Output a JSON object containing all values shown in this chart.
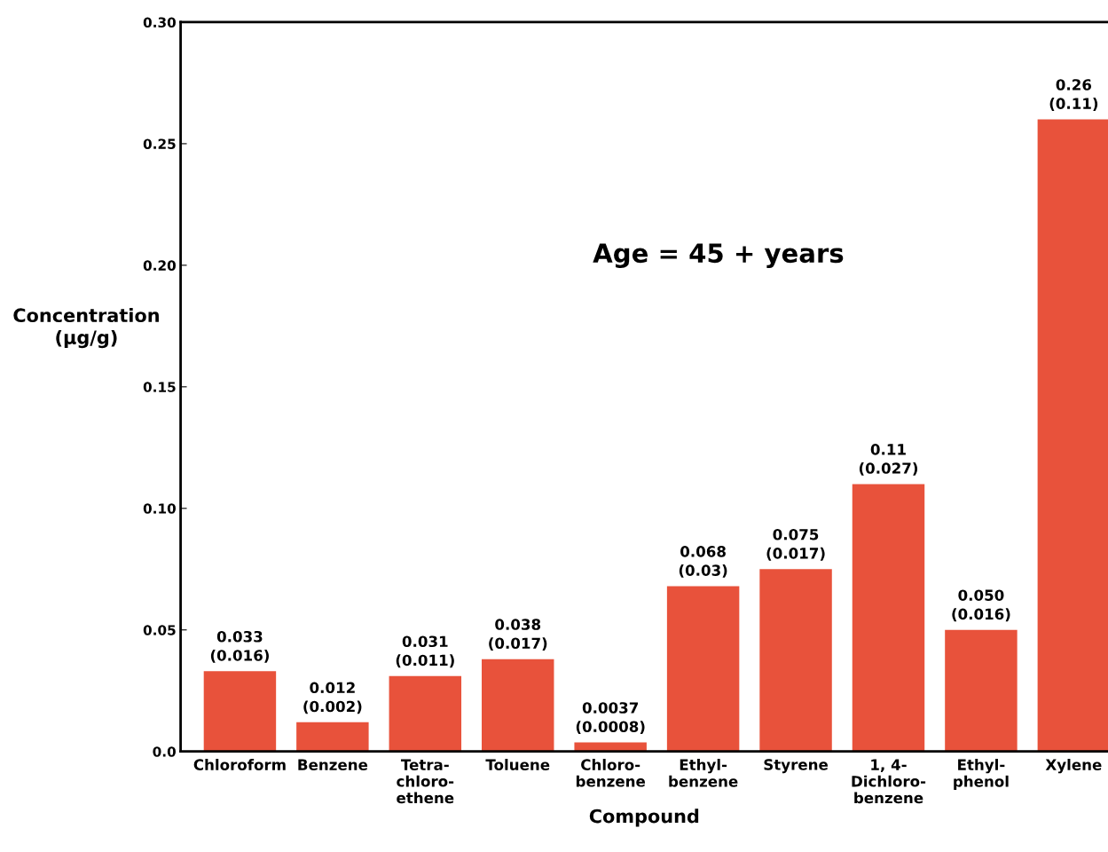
{
  "chart_data": {
    "type": "bar",
    "xlabel": "Compound",
    "ylabel": "Concentration\n(µg/g)",
    "categories": [
      "Chloroform",
      "Benzene",
      "Tetra-\nchloro-\nethene",
      "Toluene",
      "Chloro-\nbenzene",
      "Ethyl-\nbenzene",
      "Styrene",
      "1, 4-\nDichloro-\nbenzene",
      "Ethyl-\nphenol",
      "Xylene"
    ],
    "values": [
      0.033,
      0.012,
      0.031,
      0.038,
      0.0037,
      0.068,
      0.075,
      0.11,
      0.05,
      0.26
    ],
    "value_labels": [
      "0.033\n(0.016)",
      "0.012\n(0.002)",
      "0.031\n(0.011)",
      "0.038\n(0.017)",
      "0.0037\n(0.0008)",
      "0.068\n(0.03)",
      "0.075\n(0.017)",
      "0.11\n(0.027)",
      "0.050\n(0.016)",
      "0.26\n(0.11)"
    ],
    "color": "#e8523b",
    "ylim": [
      0,
      0.3
    ],
    "yticks": [
      {
        "value": 0,
        "label": "0.0"
      },
      0.05,
      {
        "value": 0.1,
        "label": "0.10"
      },
      0.15,
      {
        "value": 0.2,
        "label": "0.20"
      },
      0.25,
      {
        "value": 0.3,
        "label": "0.30"
      }
    ],
    "annotations": [
      "Age = 45 + years"
    ],
    "grid": false,
    "legend": false
  }
}
